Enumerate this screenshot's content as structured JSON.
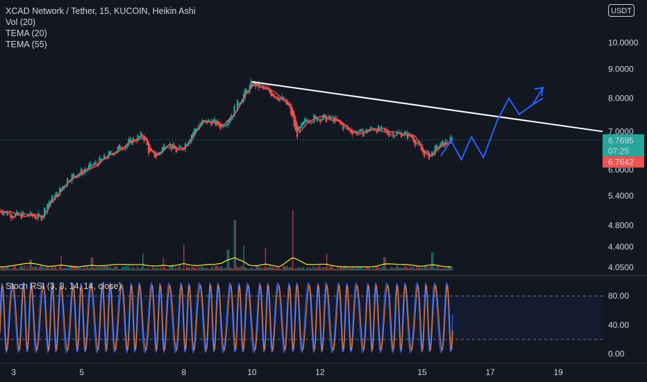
{
  "header": {
    "title": "XCAD Network / Tether, 15, KUCOIN, Heikin Ashi",
    "indicators": [
      "Vol (20)",
      "TEMA (20)",
      "TEMA (55)"
    ],
    "currency": "USDT"
  },
  "colors": {
    "background": "#131722",
    "up": "#26a69a",
    "down": "#ef5350",
    "trendline": "#ffffff",
    "projection": "#2962ff",
    "tema20": "#ef5350",
    "tema55": "#ffeb3b",
    "rsi_k": "#2962ff",
    "rsi_d": "#e07b39"
  },
  "chart_data": [
    {
      "type": "line",
      "title": "XCAD Network / Tether, 15, KUCOIN, Heikin Ashi",
      "x_ticks": [
        "3",
        "5",
        "8",
        "10",
        "12",
        "15",
        "17",
        "19"
      ],
      "x_tick_days": [
        3,
        5,
        8,
        10,
        12,
        15,
        17,
        19
      ],
      "x_range_days": [
        2.6,
        20.3
      ],
      "y_ticks": [
        "10.0000",
        "9.0000",
        "8.0000",
        "7.0000",
        "6.0000",
        "5.4000",
        "4.8000",
        "4.4000",
        "4.0500"
      ],
      "price_ticks": [
        10.0,
        9.0,
        8.0,
        7.0,
        6.0,
        5.4,
        4.8,
        4.4,
        4.05
      ],
      "y_scale": "log",
      "y_range": [
        3.95,
        11.3
      ],
      "current_price": "6.7695",
      "current_price_value": 6.7695,
      "countdown": "07:25",
      "low_label": "6.7642",
      "low_value": 6.7642,
      "series": [
        {
          "name": "XCAD/USDT",
          "x": [
            2.6,
            3.0,
            3.4,
            3.8,
            4.0,
            4.3,
            4.6,
            5.0,
            5.3,
            5.7,
            6.0,
            6.4,
            6.8,
            7.0,
            7.2,
            7.5,
            7.8,
            8.0,
            8.2,
            8.5,
            8.8,
            9.1,
            9.4,
            9.7,
            9.9,
            10.0,
            10.3,
            10.6,
            10.9,
            11.1,
            11.2,
            11.3,
            11.6,
            12.0,
            12.4,
            12.8,
            13.2,
            13.6,
            14.0,
            14.4,
            14.7,
            15.0,
            15.2,
            15.5,
            15.9
          ],
          "y": [
            5.1,
            5.0,
            5.0,
            4.95,
            5.25,
            5.45,
            5.8,
            5.95,
            6.1,
            6.3,
            6.5,
            6.7,
            6.9,
            6.4,
            6.35,
            6.7,
            6.45,
            6.6,
            6.9,
            7.25,
            7.3,
            7.15,
            7.5,
            8.05,
            8.3,
            8.5,
            8.35,
            8.15,
            7.95,
            7.7,
            7.35,
            6.9,
            7.35,
            7.4,
            7.35,
            7.05,
            6.95,
            7.1,
            6.95,
            6.95,
            6.85,
            6.45,
            6.35,
            6.6,
            6.78
          ]
        }
      ],
      "trendline": {
        "x": [
          10.0,
          20.3
        ],
        "y": [
          8.55,
          7.0
        ]
      },
      "projection": {
        "x": [
          15.55,
          15.85,
          16.15,
          16.45,
          16.8,
          17.2,
          17.55,
          17.85,
          18.25,
          18.55
        ],
        "y": [
          6.35,
          6.75,
          6.25,
          6.85,
          6.3,
          7.3,
          8.0,
          7.5,
          7.8,
          8.0
        ]
      },
      "projection_arrow": {
        "from": [
          18.25,
          7.8
        ],
        "to": [
          18.55,
          8.35
        ]
      },
      "volume": {
        "baseline_price": 4.0,
        "spikes": [
          {
            "x": 3.5,
            "peak": 4.18
          },
          {
            "x": 4.4,
            "peak": 4.25
          },
          {
            "x": 5.3,
            "peak": 4.22
          },
          {
            "x": 6.8,
            "peak": 4.28
          },
          {
            "x": 7.4,
            "peak": 4.22
          },
          {
            "x": 8.0,
            "peak": 4.45
          },
          {
            "x": 9.3,
            "peak": 4.35
          },
          {
            "x": 9.5,
            "peak": 4.9
          },
          {
            "x": 9.75,
            "peak": 4.42
          },
          {
            "x": 10.4,
            "peak": 4.38
          },
          {
            "x": 11.2,
            "peak": 5.1
          },
          {
            "x": 12.2,
            "peak": 4.28
          },
          {
            "x": 13.9,
            "peak": 4.22
          },
          {
            "x": 15.3,
            "peak": 4.3
          }
        ]
      }
    },
    {
      "type": "line",
      "title": "Stoch RSI (3, 3, 14, 14, close)",
      "y_ticks": [
        "80.00",
        "40.00",
        "0.00"
      ],
      "y_tick_values": [
        80,
        40,
        0
      ],
      "y_range": [
        -8,
        105
      ],
      "bands": [
        80,
        20
      ],
      "x_range_days": [
        2.6,
        15.9
      ],
      "cycles": 46,
      "series": [
        {
          "name": "K",
          "amplitude": [
            2,
            98
          ]
        },
        {
          "name": "D",
          "amplitude": [
            5,
            95
          ]
        }
      ]
    }
  ]
}
